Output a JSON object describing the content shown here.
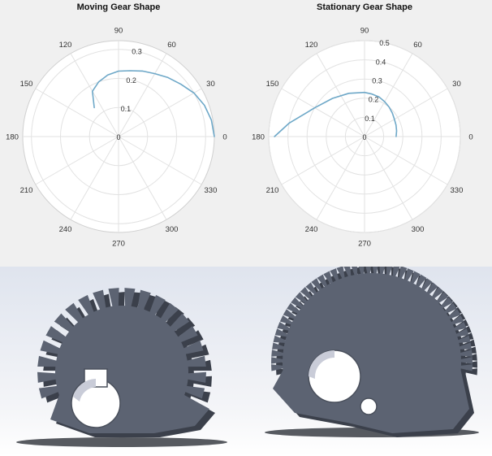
{
  "chart_data": [
    {
      "type": "polar-line",
      "title": "Moving Gear Shape",
      "angle_labels": [
        "0",
        "30",
        "60",
        "90",
        "120",
        "150",
        "180",
        "210",
        "240",
        "270",
        "300",
        "330"
      ],
      "r_ticks": [
        "0",
        "0.1",
        "0.2",
        "0.3"
      ],
      "r_max": 0.33,
      "series": [
        {
          "color": "#6ea8c8",
          "theta_deg": [
            0,
            10,
            20,
            30,
            40,
            50,
            60,
            70,
            80,
            90,
            100,
            110,
            120,
            130
          ],
          "r": [
            0.33,
            0.325,
            0.315,
            0.3,
            0.28,
            0.265,
            0.25,
            0.24,
            0.23,
            0.225,
            0.215,
            0.2,
            0.18,
            0.13
          ]
        }
      ]
    },
    {
      "type": "polar-line",
      "title": "Stationary Gear Shape",
      "angle_labels": [
        "0",
        "30",
        "60",
        "90",
        "120",
        "150",
        "180",
        "210",
        "240",
        "270",
        "300",
        "330"
      ],
      "r_ticks": [
        "0",
        "0.1",
        "0.2",
        "0.3",
        "0.4",
        "0.5"
      ],
      "r_max": 0.5,
      "series": [
        {
          "color": "#6ea8c8",
          "theta_deg": [
            0,
            10,
            20,
            30,
            40,
            50,
            60,
            70,
            80,
            90,
            110,
            130,
            150,
            170,
            180
          ],
          "r": [
            0.165,
            0.17,
            0.175,
            0.18,
            0.19,
            0.2,
            0.21,
            0.22,
            0.225,
            0.23,
            0.24,
            0.26,
            0.3,
            0.4,
            0.47
          ]
        }
      ]
    }
  ],
  "renders": {
    "left_gear_color": "#5c6372",
    "right_gear_color": "#5c6372"
  }
}
